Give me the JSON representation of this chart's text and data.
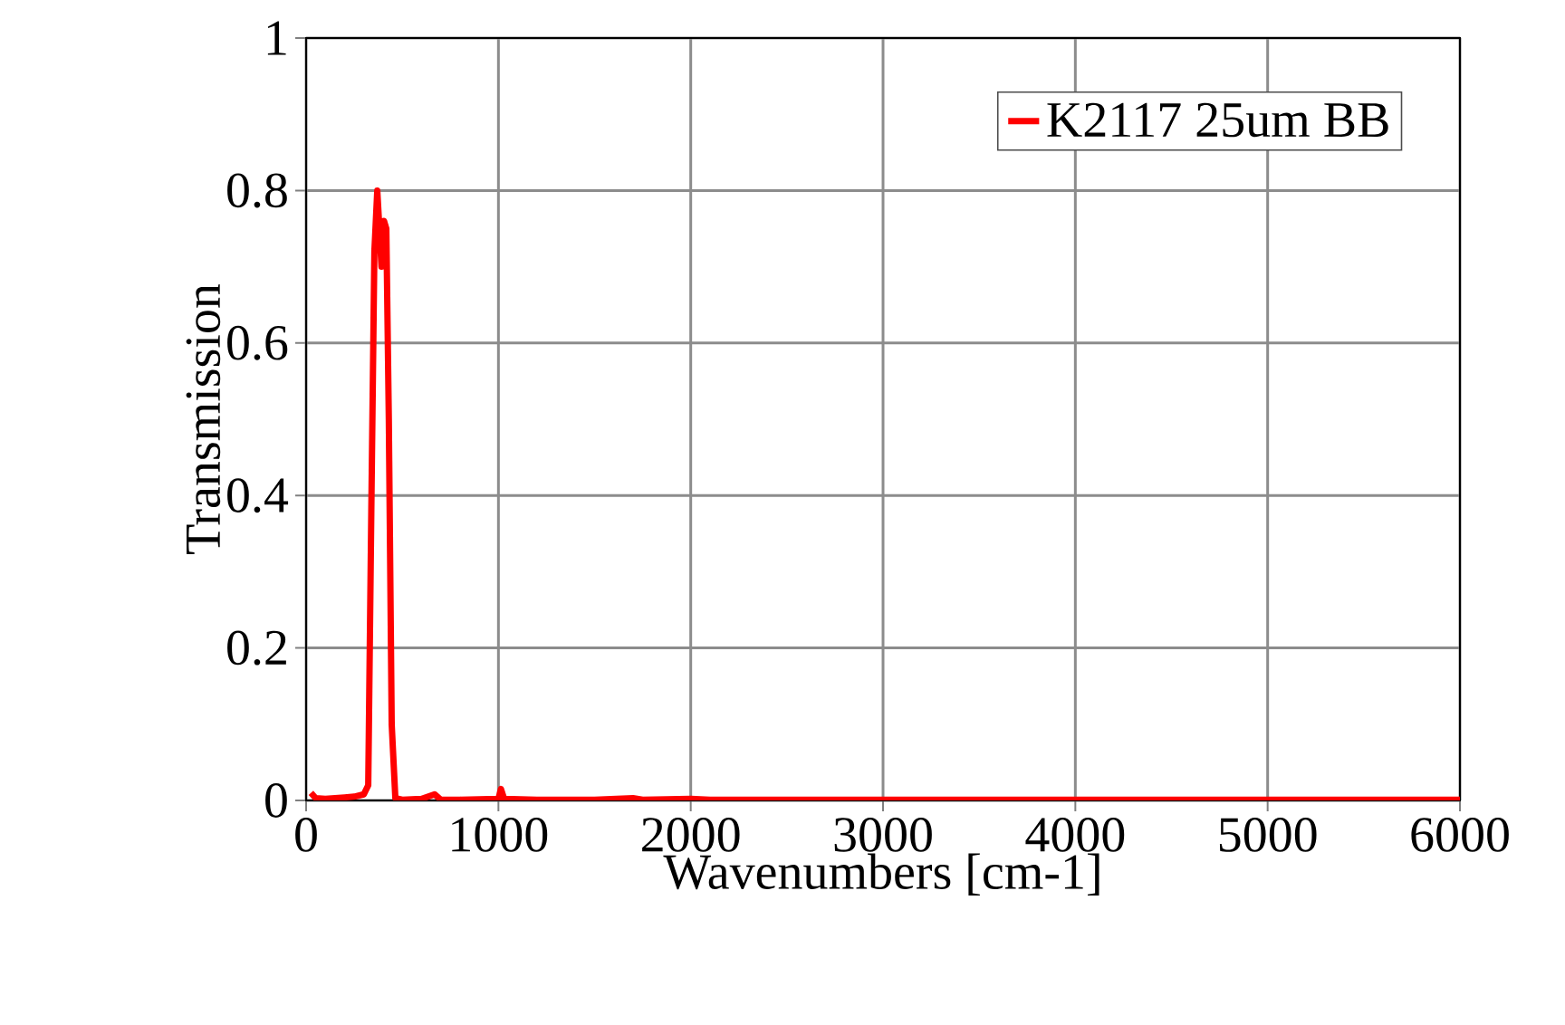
{
  "chart_data": {
    "type": "line",
    "xlabel": "Wavenumbers [cm-1]",
    "ylabel": "Transmission",
    "xlim": [
      0,
      6000
    ],
    "ylim": [
      0,
      1
    ],
    "xticks": [
      0,
      1000,
      2000,
      3000,
      4000,
      5000,
      6000
    ],
    "yticks": [
      0,
      0.2,
      0.4,
      0.6,
      0.8,
      1
    ],
    "grid": true,
    "legend": "top right",
    "marker": "none",
    "line_style": "solid",
    "series": [
      {
        "name": "K2117 25um BB",
        "color": "#ff0000",
        "x": [
          25,
          50,
          100,
          200,
          250,
          300,
          323,
          339,
          355,
          370,
          392,
          405,
          417,
          430,
          445,
          464,
          500,
          600,
          668,
          700,
          800,
          1000,
          1013,
          1030,
          1200,
          1500,
          1700,
          1750,
          2000,
          2100,
          2500,
          3000,
          4000,
          5000,
          6000
        ],
        "values": [
          0.01,
          0.003,
          0.002,
          0.004,
          0.005,
          0.008,
          0.02,
          0.38,
          0.72,
          0.8,
          0.7,
          0.76,
          0.75,
          0.5,
          0.1,
          0.003,
          0.001,
          0.002,
          0.008,
          0.001,
          0.001,
          0.002,
          0.015,
          0.002,
          0.001,
          0.001,
          0.003,
          0.001,
          0.002,
          0.001,
          0.001,
          0.001,
          0.001,
          0.001,
          0.001
        ]
      }
    ]
  }
}
